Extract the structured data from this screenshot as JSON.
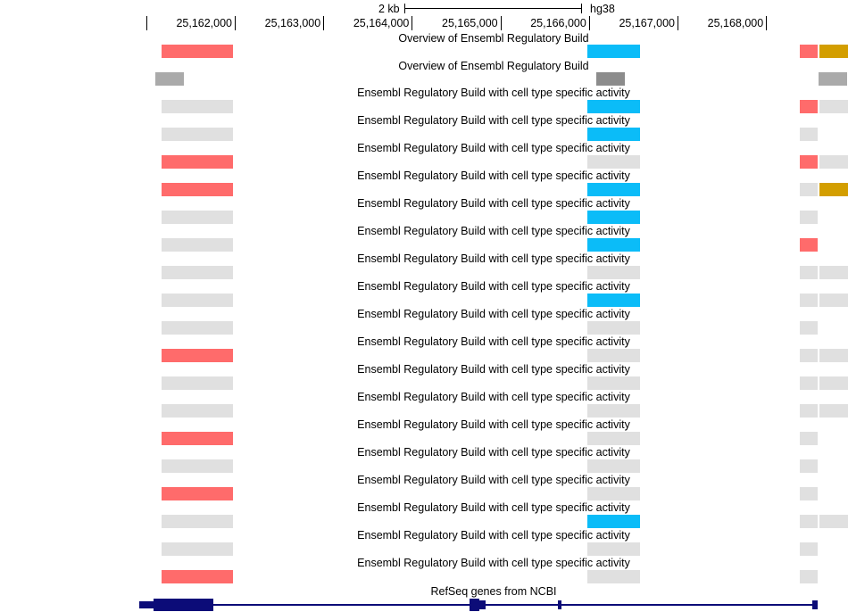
{
  "ruler": {
    "scale_label": "2 kb",
    "assembly": "hg38",
    "ticks": [
      "25,162,000",
      "25,163,000",
      "25,164,000",
      "25,165,000",
      "25,166,000",
      "25,167,000",
      "25,168,000"
    ]
  },
  "colors": {
    "red": "#ff6b6b",
    "blue": "#0bbcf8",
    "gold": "#d39e00",
    "grey": "#e0e0e0",
    "dark_grey": "#aaaaaa",
    "gene": "#0c0c78"
  },
  "overview_label": "Overview of Ensembl Regulatory Build",
  "celltype_label": "Ensembl Regulatory Build with cell type specific activity",
  "refseq_label": "RefSeq genes from NCBI",
  "overview_row": {
    "left": "red",
    "mid": "blue",
    "right1": "red",
    "right2": "gold"
  },
  "celltype_rows": [
    {
      "left": "grey",
      "mid": "blue",
      "right1": "red",
      "right2": "grey"
    },
    {
      "left": "grey",
      "mid": "blue",
      "right1": "grey",
      "right2": ""
    },
    {
      "left": "red",
      "mid": "grey",
      "right1": "red",
      "right2": "grey"
    },
    {
      "left": "red",
      "mid": "blue",
      "right1": "grey",
      "right2": "gold"
    },
    {
      "left": "grey",
      "mid": "blue",
      "right1": "grey",
      "right2": ""
    },
    {
      "left": "grey",
      "mid": "blue",
      "right1": "red",
      "right2": ""
    },
    {
      "left": "grey",
      "mid": "grey",
      "right1": "grey",
      "right2": "grey"
    },
    {
      "left": "grey",
      "mid": "blue",
      "right1": "grey",
      "right2": "grey"
    },
    {
      "left": "grey",
      "mid": "grey",
      "right1": "grey",
      "right2": ""
    },
    {
      "left": "red",
      "mid": "grey",
      "right1": "grey",
      "right2": "grey"
    },
    {
      "left": "grey",
      "mid": "grey",
      "right1": "grey",
      "right2": "grey"
    },
    {
      "left": "grey",
      "mid": "grey",
      "right1": "grey",
      "right2": "grey"
    },
    {
      "left": "red",
      "mid": "grey",
      "right1": "grey",
      "right2": ""
    },
    {
      "left": "grey",
      "mid": "grey",
      "right1": "grey",
      "right2": ""
    },
    {
      "left": "red",
      "mid": "grey",
      "right1": "grey",
      "right2": ""
    },
    {
      "left": "grey",
      "mid": "blue",
      "right1": "grey",
      "right2": "grey"
    },
    {
      "left": "grey",
      "mid": "grey",
      "right1": "grey",
      "right2": ""
    },
    {
      "left": "red",
      "mid": "grey",
      "right1": "grey",
      "right2": ""
    }
  ]
}
